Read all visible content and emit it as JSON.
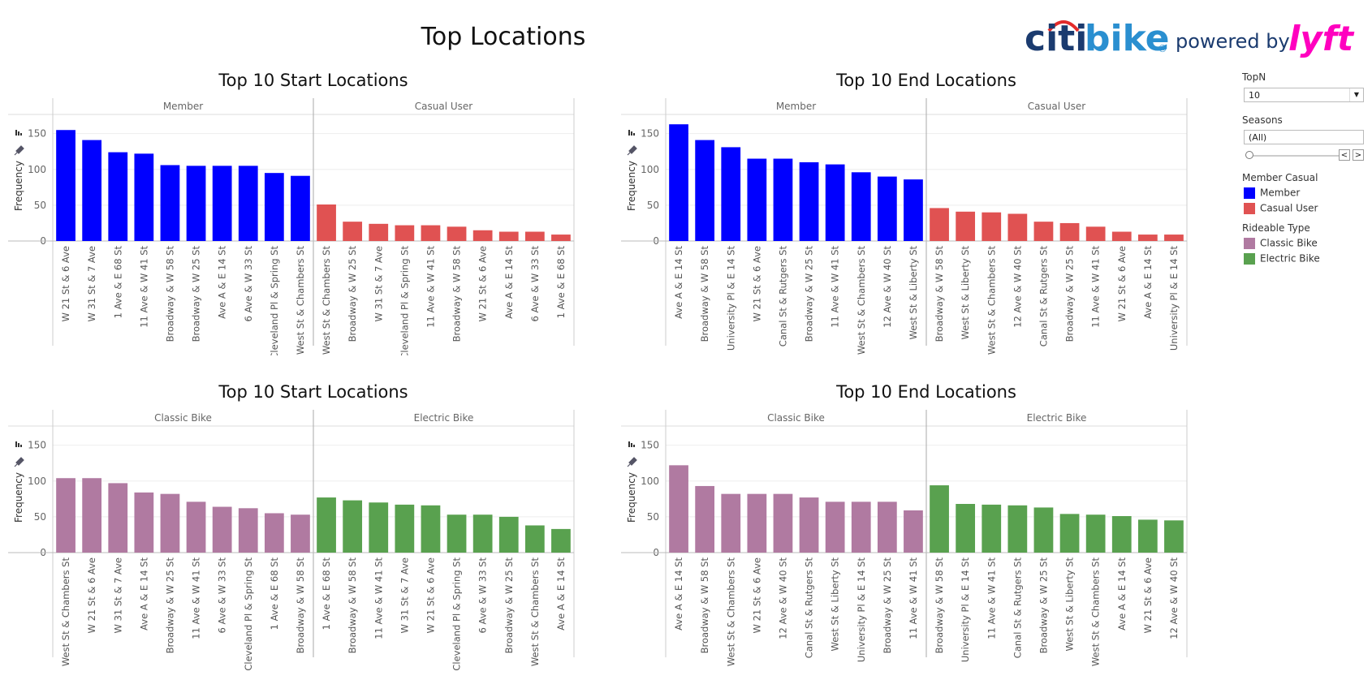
{
  "dashboard": {
    "title": "Top Locations"
  },
  "logo": {
    "brand_part1": "citi",
    "brand_part2": "bike",
    "registered": "®",
    "tagline": "powered by",
    "partner": "lyft"
  },
  "colors": {
    "member": "#0000FF",
    "casual": "#E05252",
    "classic": "#B07AA1",
    "electric": "#59A14F"
  },
  "controls": {
    "topn_label": "TopN",
    "topn_value": "10",
    "seasons_label": "Seasons",
    "seasons_value": "(All)",
    "member_casual_label": "Member Casual",
    "member_casual_items": [
      {
        "label": "Member",
        "color": "#0000FF"
      },
      {
        "label": "Casual User",
        "color": "#E05252"
      }
    ],
    "rideable_label": "Rideable Type",
    "rideable_items": [
      {
        "label": "Classic Bike",
        "color": "#B07AA1"
      },
      {
        "label": "Electric Bike",
        "color": "#59A14F"
      }
    ]
  },
  "chart_data": [
    {
      "type": "bar",
      "title": "Top 10 Start Locations",
      "ylabel": "Frequency",
      "ylim": [
        0,
        170
      ],
      "yticks": [
        "0",
        "50",
        "100",
        "150"
      ],
      "facets": [
        {
          "name": "Member",
          "color": "#0000FF",
          "categories": [
            "W 21 St & 6 Ave",
            "W 31 St & 7 Ave",
            "1 Ave & E 68 St",
            "11 Ave & W 41 St",
            "Broadway & W 58 St",
            "Broadway & W 25 St",
            "Ave A & E 14 St",
            "6 Ave & W 33 St",
            "Cleveland Pl & Spring St",
            "West St & Chambers St"
          ],
          "values": [
            155,
            141,
            124,
            122,
            106,
            105,
            105,
            105,
            95,
            91
          ]
        },
        {
          "name": "Casual User",
          "color": "#E05252",
          "categories": [
            "West St & Chambers St",
            "Broadway & W 25 St",
            "W 31 St & 7 Ave",
            "Cleveland Pl & Spring St",
            "11 Ave & W 41 St",
            "Broadway & W 58 St",
            "W 21 St & 6 Ave",
            "Ave A & E 14 St",
            "6 Ave & W 33 St",
            "1 Ave & E 68 St"
          ],
          "values": [
            51,
            27,
            24,
            22,
            22,
            20,
            15,
            13,
            13,
            9
          ]
        }
      ]
    },
    {
      "type": "bar",
      "title": "Top 10 End Locations",
      "ylabel": "Frequency",
      "ylim": [
        0,
        170
      ],
      "yticks": [
        "0",
        "50",
        "100",
        "150"
      ],
      "facets": [
        {
          "name": "Member",
          "color": "#0000FF",
          "categories": [
            "Ave A & E 14 St",
            "Broadway & W 58 St",
            "University Pl & E 14 St",
            "W 21 St & 6 Ave",
            "Canal St & Rutgers St",
            "Broadway & W 25 St",
            "11 Ave & W 41 St",
            "West St & Chambers St",
            "12 Ave & W 40 St",
            "West St & Liberty St"
          ],
          "values": [
            163,
            141,
            131,
            115,
            115,
            110,
            107,
            96,
            90,
            86
          ]
        },
        {
          "name": "Casual User",
          "color": "#E05252",
          "categories": [
            "Broadway & W 58 St",
            "West St & Liberty St",
            "West St & Chambers St",
            "12 Ave & W 40 St",
            "Canal St & Rutgers St",
            "Broadway & W 25 St",
            "11 Ave & W 41 St",
            "W 21 St & 6 Ave",
            "Ave A & E 14 St",
            "University Pl & E 14 St"
          ],
          "values": [
            46,
            41,
            40,
            38,
            27,
            25,
            20,
            13,
            9,
            9
          ]
        }
      ]
    },
    {
      "type": "bar",
      "title": "Top 10 Start Locations",
      "ylabel": "Frequency",
      "ylim": [
        0,
        170
      ],
      "yticks": [
        "0",
        "50",
        "100",
        "150"
      ],
      "facets": [
        {
          "name": "Classic Bike",
          "color": "#B07AA1",
          "categories": [
            "West St & Chambers St",
            "W 21 St & 6 Ave",
            "W 31 St & 7 Ave",
            "Ave A & E 14 St",
            "Broadway & W 25 St",
            "11 Ave & W 41 St",
            "6 Ave & W 33 St",
            "Cleveland Pl & Spring St",
            "1 Ave & E 68 St",
            "Broadway & W 58 St"
          ],
          "values": [
            104,
            104,
            97,
            84,
            82,
            71,
            64,
            62,
            55,
            53
          ]
        },
        {
          "name": "Electric Bike",
          "color": "#59A14F",
          "categories": [
            "1 Ave & E 68 St",
            "Broadway & W 58 St",
            "11 Ave & W 41 St",
            "W 31 St & 7 Ave",
            "W 21 St & 6 Ave",
            "Cleveland Pl & Spring St",
            "6 Ave & W 33 St",
            "Broadway & W 25 St",
            "West St & Chambers St",
            "Ave A & E 14 St"
          ],
          "values": [
            77,
            73,
            70,
            67,
            66,
            53,
            53,
            50,
            38,
            33
          ]
        }
      ]
    },
    {
      "type": "bar",
      "title": "Top 10 End Locations",
      "ylabel": "Frequency",
      "ylim": [
        0,
        170
      ],
      "yticks": [
        "0",
        "50",
        "100",
        "150"
      ],
      "facets": [
        {
          "name": "Classic Bike",
          "color": "#B07AA1",
          "categories": [
            "Ave A & E 14 St",
            "Broadway & W 58 St",
            "West St & Chambers St",
            "W 21 St & 6 Ave",
            "12 Ave & W 40 St",
            "Canal St & Rutgers St",
            "West St & Liberty St",
            "University Pl & E 14 St",
            "Broadway & W 25 St",
            "11 Ave & W 41 St"
          ],
          "values": [
            122,
            93,
            82,
            82,
            82,
            77,
            71,
            71,
            71,
            59
          ]
        },
        {
          "name": "Electric Bike",
          "color": "#59A14F",
          "categories": [
            "Broadway & W 58 St",
            "University Pl & E 14 St",
            "11 Ave & W 41 St",
            "Canal St & Rutgers St",
            "Broadway & W 25 St",
            "West St & Liberty St",
            "West St & Chambers St",
            "Ave A & E 14 St",
            "W 21 St & 6 Ave",
            "12 Ave & W 40 St"
          ],
          "values": [
            94,
            68,
            67,
            66,
            63,
            54,
            53,
            51,
            46,
            45
          ]
        }
      ]
    }
  ]
}
